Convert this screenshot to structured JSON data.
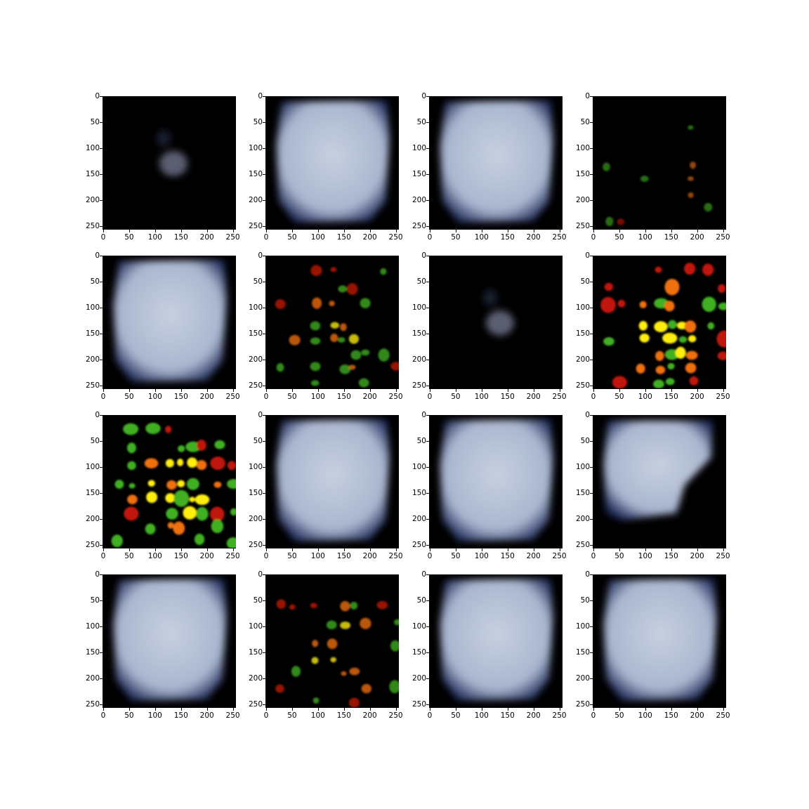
{
  "axes": {
    "x_ticks": [
      "0",
      "50",
      "100",
      "150",
      "200",
      "250"
    ],
    "y_ticks": [
      "0",
      "50",
      "100",
      "150",
      "200",
      "250"
    ],
    "data_range": [
      0,
      256
    ]
  },
  "colors": {
    "background": "#000000",
    "fog": "#c7d0e0",
    "fog_edge": "#1e2a5a",
    "blob_red": "#c01808",
    "blob_orange": "#f07010",
    "blob_yellow": "#ffee10",
    "blob_green": "#40b020"
  },
  "panels": [
    {
      "kind": "faint_blob"
    },
    {
      "kind": "fog"
    },
    {
      "kind": "fog"
    },
    {
      "kind": "speckle_dim"
    },
    {
      "kind": "fog"
    },
    {
      "kind": "speckle_medium"
    },
    {
      "kind": "faint_blob"
    },
    {
      "kind": "speckle_bright"
    },
    {
      "kind": "speckle_bright"
    },
    {
      "kind": "fog"
    },
    {
      "kind": "fog"
    },
    {
      "kind": "fog_cut"
    },
    {
      "kind": "fog"
    },
    {
      "kind": "speckle_medium"
    },
    {
      "kind": "fog"
    },
    {
      "kind": "fog"
    }
  ]
}
